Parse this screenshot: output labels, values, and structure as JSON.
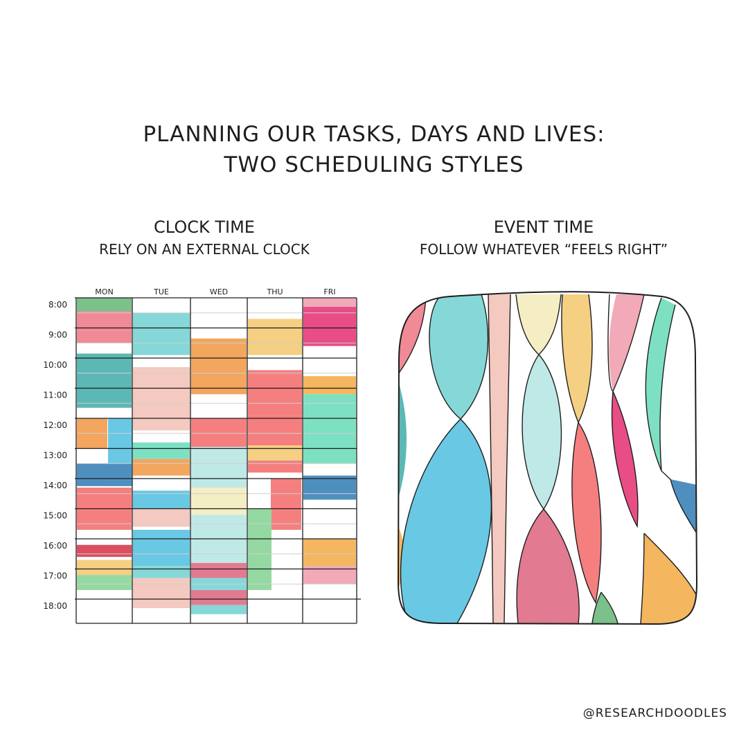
{
  "title": {
    "line1": "PLANNING OUR TASKS, DAYS AND LIVES:",
    "line2": "TWO SCHEDULING STYLES"
  },
  "clock_time": {
    "heading": "CLOCK TIME",
    "subheading": "RELY ON AN EXTERNAL CLOCK",
    "days": [
      "MON",
      "TUE",
      "WED",
      "THU",
      "FRI"
    ],
    "hours": [
      "8:00",
      "9:00",
      "10:00",
      "11:00",
      "12:00",
      "13:00",
      "14:00",
      "15:00",
      "16:00",
      "17:00",
      "18:00"
    ]
  },
  "event_time": {
    "heading": "EVENT TIME",
    "subheading": "FOLLOW WHATEVER “FEELS RIGHT”"
  },
  "credit": "@RESEARCHDOODLES",
  "colors": {
    "green": "#7cc08a",
    "pink": "#f08a96",
    "teal": "#5cb8b4",
    "aqua": "#86d8d8",
    "orange": "#f2a65e",
    "peach": "#f4c9bf",
    "salmon": "#f57f7f",
    "magenta": "#e84d86",
    "yellow": "#f5cf82",
    "mint": "#7de0c2",
    "blue": "#4f8fc0",
    "skyblue": "#69c8e4",
    "rose": "#e27a92",
    "lightaqua": "#bfe9e6",
    "cream": "#f5eec4",
    "red": "#d9505f",
    "lime": "#94d9a2",
    "lightpink": "#f2a9b8",
    "gold": "#f4b65f"
  }
}
